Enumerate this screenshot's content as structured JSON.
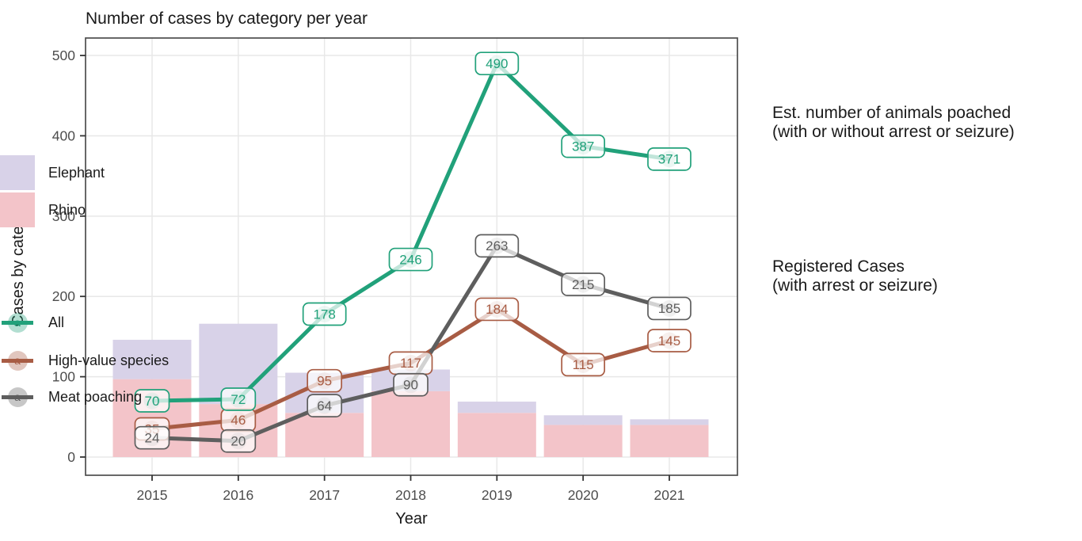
{
  "chart": {
    "title": "Number of cases by category per year",
    "x_axis_label": "Year",
    "y_axis_label": "Cases by category"
  },
  "chart_data": {
    "type": "combo-stacked-bar-and-line",
    "title": "Number of cases by category per year",
    "xlabel": "Year",
    "ylabel": "Cases by category",
    "categories": [
      "2015",
      "2016",
      "2017",
      "2018",
      "2019",
      "2020",
      "2021"
    ],
    "ylim": [
      0,
      500
    ],
    "yticks": [
      0,
      100,
      200,
      300,
      400,
      500
    ],
    "grid": true,
    "legend_position": "right",
    "bars_stacked": true,
    "bar_series": [
      {
        "name": "Rhino",
        "values": [
          97,
          66,
          55,
          82,
          55,
          40,
          40
        ],
        "color": "#f3c4c9"
      },
      {
        "name": "Elephant",
        "values": [
          49,
          100,
          50,
          27,
          14,
          12,
          7
        ],
        "color": "#d8d2e8"
      }
    ],
    "line_series": [
      {
        "name": "All",
        "values": [
          70,
          72,
          178,
          246,
          490,
          387,
          371
        ],
        "color": "#21a17a"
      },
      {
        "name": "High-value species",
        "values": [
          35,
          46,
          95,
          117,
          184,
          115,
          145
        ],
        "color": "#a85c44"
      },
      {
        "name": "Meat poaching",
        "values": [
          24,
          20,
          64,
          90,
          263,
          215,
          185
        ],
        "color": "#5e5e5e"
      }
    ]
  },
  "legends": [
    {
      "title_line1": "Est. number of animals poached",
      "title_line2": "(with or without arrest or seizure)",
      "items": [
        {
          "label": "Elephant"
        },
        {
          "label": "Rhino"
        }
      ]
    },
    {
      "title_line1": "Registered Cases",
      "title_line2": "(with arrest or seizure)",
      "items": [
        {
          "label": "All",
          "key_letter": "a"
        },
        {
          "label": "High-value species",
          "key_letter": "a"
        },
        {
          "label": "Meat poaching",
          "key_letter": "a"
        }
      ]
    }
  ],
  "colors": {
    "panel_border": "#4d4d4d",
    "gridline": "#e8e8e8",
    "tick_text": "#4d4d4d",
    "label_box_fill": "#ffffff"
  }
}
